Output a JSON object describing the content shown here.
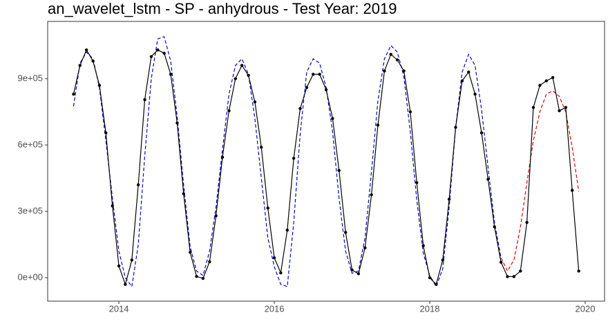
{
  "chart_data": {
    "type": "line",
    "title": "an_wavelet_lstm - SP - anhydrous - Test Year: 2019",
    "x": [
      2013.417,
      2013.5,
      2013.583,
      2013.667,
      2013.75,
      2013.833,
      2013.917,
      2014.0,
      2014.083,
      2014.167,
      2014.25,
      2014.333,
      2014.417,
      2014.5,
      2014.583,
      2014.667,
      2014.75,
      2014.833,
      2014.917,
      2015.0,
      2015.083,
      2015.167,
      2015.25,
      2015.333,
      2015.417,
      2015.5,
      2015.583,
      2015.667,
      2015.75,
      2015.833,
      2015.917,
      2016.0,
      2016.083,
      2016.167,
      2016.25,
      2016.333,
      2016.417,
      2016.5,
      2016.583,
      2016.667,
      2016.75,
      2016.833,
      2016.917,
      2017.0,
      2017.083,
      2017.167,
      2017.25,
      2017.333,
      2017.417,
      2017.5,
      2017.583,
      2017.667,
      2017.75,
      2017.833,
      2017.917,
      2018.0,
      2018.083,
      2018.167,
      2018.25,
      2018.333,
      2018.417,
      2018.5,
      2018.583,
      2018.667,
      2018.75,
      2018.833,
      2018.917,
      2019.0,
      2019.083,
      2019.167,
      2019.25,
      2019.333,
      2019.417,
      2019.5,
      2019.583,
      2019.667,
      2019.75,
      2019.833,
      2019.917
    ],
    "series": [
      {
        "color": "#0000cc",
        "dashed": true,
        "markers": false,
        "values": [
          775000,
          970000,
          1020000,
          990000,
          860000,
          620000,
          360000,
          120000,
          0,
          -40000,
          150000,
          550000,
          900000,
          1080000,
          1090000,
          980000,
          730000,
          420000,
          140000,
          30000,
          10000,
          120000,
          320000,
          580000,
          830000,
          960000,
          990000,
          920000,
          720000,
          450000,
          180000,
          50000,
          -30000,
          -40000,
          250000,
          650000,
          930000,
          990000,
          970000,
          860000,
          660000,
          360000,
          120000,
          20000,
          30000,
          180000,
          480000,
          800000,
          990000,
          1050000,
          1020000,
          910000,
          660000,
          350000,
          110000,
          10000,
          -40000,
          40000,
          320000,
          680000,
          930000,
          1010000,
          960000,
          760000,
          500000,
          250000,
          90000,
          null,
          null,
          null,
          null,
          null,
          null,
          null,
          null,
          null,
          null,
          null,
          null
        ]
      },
      {
        "color": "#e00000",
        "dashed": true,
        "markers": false,
        "values": [
          null,
          null,
          null,
          null,
          null,
          null,
          null,
          null,
          null,
          null,
          null,
          null,
          null,
          null,
          null,
          null,
          null,
          null,
          null,
          null,
          null,
          null,
          null,
          null,
          null,
          null,
          null,
          null,
          null,
          null,
          null,
          null,
          null,
          null,
          null,
          null,
          null,
          null,
          null,
          null,
          null,
          null,
          null,
          null,
          null,
          null,
          null,
          null,
          null,
          null,
          null,
          null,
          null,
          null,
          null,
          null,
          null,
          null,
          null,
          null,
          null,
          null,
          null,
          null,
          null,
          null,
          90000,
          30000,
          80000,
          230000,
          430000,
          620000,
          750000,
          830000,
          845000,
          820000,
          750000,
          590000,
          390000
        ]
      },
      {
        "color": "#000000",
        "dashed": false,
        "markers": true,
        "values": [
          830000,
          960000,
          1030000,
          980000,
          870000,
          655000,
          325000,
          53000,
          -30000,
          80000,
          420000,
          805000,
          1000000,
          1030000,
          1015000,
          920000,
          700000,
          380000,
          115000,
          6000,
          -3000,
          72000,
          280000,
          545000,
          755000,
          900000,
          960000,
          915000,
          795000,
          590000,
          315000,
          90000,
          22000,
          215000,
          540000,
          765000,
          860000,
          920000,
          920000,
          850000,
          720000,
          485000,
          205000,
          35000,
          18000,
          135000,
          375000,
          690000,
          935000,
          1010000,
          985000,
          935000,
          750000,
          430000,
          145000,
          0,
          -30000,
          80000,
          355000,
          680000,
          890000,
          930000,
          830000,
          655000,
          445000,
          230000,
          70000,
          5000,
          5000,
          30000,
          250000,
          770000,
          870000,
          890000,
          905000,
          755000,
          770000,
          395000,
          30000
        ]
      }
    ],
    "xlim": [
      2013.084,
      2020.249
    ],
    "xticks": [
      2014,
      2016,
      2018,
      2020
    ],
    "ylim": [
      -106000,
      1159000
    ],
    "yticks": [
      {
        "value": 0,
        "label": "0e+00"
      },
      {
        "value": 300000,
        "label": "3e+05"
      },
      {
        "value": 600000,
        "label": "6e+05"
      },
      {
        "value": 900000,
        "label": "9e+05"
      }
    ]
  }
}
